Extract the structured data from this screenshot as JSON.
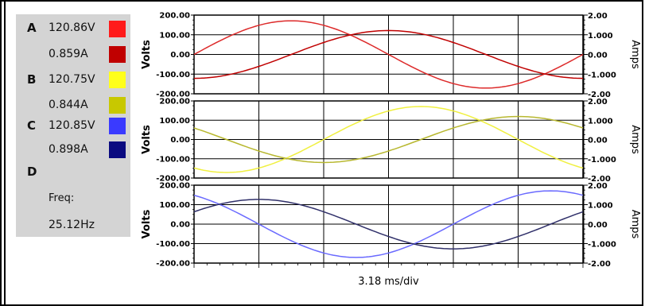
{
  "legend": {
    "channels": [
      {
        "letter": "A",
        "voltage": "120.86V",
        "current": "0.859A",
        "voltage_color": "#ff1a1a",
        "current_color": "#c00000"
      },
      {
        "letter": "B",
        "voltage": "120.75V",
        "current": "0.844A",
        "voltage_color": "#ffff1a",
        "current_color": "#c8c800"
      },
      {
        "letter": "C",
        "voltage": "120.85V",
        "current": "0.898A",
        "voltage_color": "#3a3aff",
        "current_color": "#0a0a80"
      },
      {
        "letter": "D"
      }
    ],
    "freq_label": "Freq:",
    "freq_value": "25.12Hz"
  },
  "chart_data": {
    "type": "line",
    "xlabel": "3.18 ms/div",
    "x_divisions": 6,
    "panels": [
      {
        "ylabel_left": "Volts",
        "ylabel_right": "Amps",
        "left_ticks": [
          "200.00",
          "100.00",
          "0.00",
          "-100.00",
          "-200.00"
        ],
        "ylim_left": [
          -200,
          200
        ],
        "right_ticks": [
          "2.00",
          "1.000",
          "0.00",
          "-1.000",
          "-2.00"
        ],
        "ylim_right": [
          -2,
          2
        ],
        "series": [
          {
            "name": "A 120.86V",
            "axis": "left",
            "color": "#dd2a2a",
            "amplitude": 171,
            "phase_deg": 0
          },
          {
            "name": "A 0.859A",
            "axis": "right",
            "color": "#c00000",
            "amplitude": 1.215,
            "phase_deg": -90
          }
        ]
      },
      {
        "ylabel_left": "Volts",
        "ylabel_right": "Amps",
        "left_ticks": [
          "200.00",
          "100.00",
          "0.00",
          "-100.00",
          "-200.00"
        ],
        "ylim_left": [
          -200,
          200
        ],
        "right_ticks": [
          "2.00",
          "1.000",
          "0.00",
          "-1.000",
          "-2.00"
        ],
        "ylim_right": [
          -2,
          2
        ],
        "series": [
          {
            "name": "B 120.75V",
            "axis": "left",
            "color": "#f0f040",
            "amplitude": 171,
            "phase_deg": -120
          },
          {
            "name": "B 0.844A",
            "axis": "right",
            "color": "#b8b830",
            "amplitude": 1.194,
            "phase_deg": -210
          }
        ]
      },
      {
        "ylabel_left": "Volts",
        "ylabel_right": "Amps",
        "left_ticks": [
          "200.00",
          "100.00",
          "0.00",
          "-100.00",
          "-200.00"
        ],
        "ylim_left": [
          -200,
          200
        ],
        "right_ticks": [
          "2.00",
          "1.000",
          "0.00",
          "-1.000",
          "-2.00"
        ],
        "ylim_right": [
          -2,
          2
        ],
        "series": [
          {
            "name": "C 120.85V",
            "axis": "left",
            "color": "#6a6aff",
            "amplitude": 171,
            "phase_deg": 120
          },
          {
            "name": "C 0.898A",
            "axis": "right",
            "color": "#30306a",
            "amplitude": 1.27,
            "phase_deg": 30
          }
        ]
      }
    ]
  }
}
